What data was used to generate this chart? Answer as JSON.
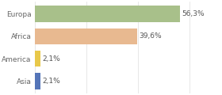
{
  "categories": [
    "Europa",
    "Africa",
    "America",
    "Asia"
  ],
  "values": [
    56.3,
    39.6,
    2.1,
    2.1
  ],
  "labels": [
    "56,3%",
    "39,6%",
    "2,1%",
    "2,1%"
  ],
  "bar_colors": [
    "#a8c08a",
    "#e8b990",
    "#e8c84a",
    "#5575b8"
  ],
  "background_color": "#ffffff",
  "xlim": [
    0,
    72
  ],
  "label_fontsize": 6.5,
  "tick_fontsize": 6.5,
  "bar_height": 0.72
}
